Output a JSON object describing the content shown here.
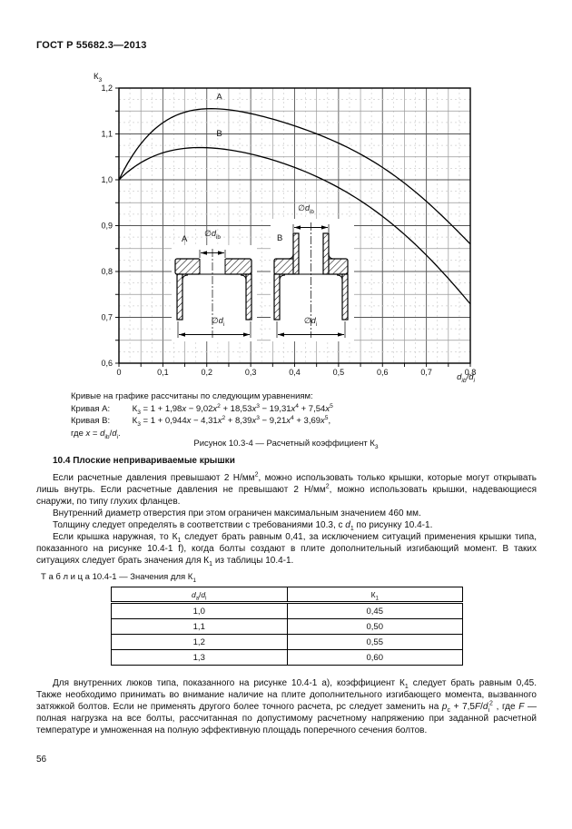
{
  "doc": {
    "header": "ГОСТ Р 55682.3—2013",
    "page_number": "56"
  },
  "chart_data": {
    "type": "line",
    "title": "",
    "ylabel": "К_{3}",
    "xlabel": "*d*_{ib}/*d*_{i}",
    "xlim": [
      0,
      0.8
    ],
    "ylim": [
      0.6,
      1.2
    ],
    "xticks": [
      "0",
      "0,1",
      "0,2",
      "0,3",
      "0,4",
      "0,5",
      "0,6",
      "0,7",
      "0,8"
    ],
    "yticks": [
      "1,2",
      "1,1",
      "1,0",
      "0,9",
      "0,8",
      "0,7",
      "0,6"
    ],
    "grid": {
      "major_step": 0.1,
      "minor_step": 0.05,
      "sub_step": 0.025,
      "grid_on": true
    },
    "legend_position": "inline-curve-labels",
    "series": [
      {
        "name": "A",
        "equation": "K3 = 1 + 1,98x − 9,02x² + 18,53x³ − 19,31x⁴ + 7,54x⁵",
        "coeffs": [
          1,
          1.98,
          -9.02,
          18.53,
          -19.31,
          7.54
        ],
        "x": [
          0,
          0.05,
          0.1,
          0.15,
          0.2,
          0.25,
          0.3,
          0.35,
          0.4,
          0.45,
          0.5,
          0.55,
          0.6,
          0.65,
          0.7,
          0.75,
          0.8
        ],
        "y": [
          1.0,
          1.0787,
          1.1245,
          1.1474,
          1.155,
          1.1527,
          1.1444,
          1.1324,
          1.1176,
          1.1004,
          1.08,
          1.0559,
          1.0271,
          0.9928,
          0.9529,
          0.9081,
          0.8599
        ],
        "label_pos": [
          0.222,
          1.175
        ]
      },
      {
        "name": "B",
        "equation": "K3 = 1 + 0,944x − 4,31x² + 8,39x³ − 9,21x⁴ + 3,69x⁵",
        "coeffs": [
          1,
          0.944,
          -4.31,
          8.39,
          -9.21,
          3.69
        ],
        "x": [
          0,
          0.05,
          0.1,
          0.15,
          0.2,
          0.25,
          0.3,
          0.35,
          0.4,
          0.45,
          0.5,
          0.55,
          0.6,
          0.65,
          0.7,
          0.75,
          0.8
        ],
        "y": [
          1.0,
          1.0374,
          1.0588,
          1.0686,
          1.07,
          1.0653,
          1.0562,
          1.0433,
          1.027,
          1.007,
          0.9829,
          0.9546,
          0.9203,
          0.8807,
          0.8355,
          0.7847,
          0.7292
        ],
        "label_pos": [
          0.222,
          1.095
        ]
      }
    ],
    "insets": {
      "a": {
        "label": "A",
        "top_dim": "∅*d*_{ib}",
        "bottom_dim": "∅*d*_{i}"
      },
      "b": {
        "label": "B",
        "top_dim": "∅*d*_{ib}",
        "bottom_dim": "∅*d*_{i}"
      }
    }
  },
  "figure": {
    "equations_intro": "Кривые на графике рассчитаны по следующим уравнениям:",
    "curve_a_label": "Кривая A:",
    "curve_a_eq": "К_{3} = 1 + 1,98*x* − 9,02*x*^{2} + 18,53*x*^{3} − 19,31*x*^{4} + 7,54*x*^{5}",
    "curve_b_label": "Кривая B:",
    "curve_b_eq": "К_{3} = 1 + 0,944*x* − 4,31*x*^{2} + 8,39*x*^{3} − 9,21*x*^{4} + 3,69*x*^{5},",
    "where_line": "где *x* = *d*_{ib}/*d*_{i}.",
    "caption": "Рисунок 10.3-4 — Расчетный коэффициент К_{3}"
  },
  "section": {
    "heading": "10.4 Плоские непривариваемые крышки",
    "paragraphs": [
      "Если расчетные давления превышают 2 Н/мм^{2}, можно использовать только крышки, которые могут открывать лишь внутрь. Если расчетные давления не превышают 2 Н/мм^{2}, можно использовать крышки, надевающиеся снаружи, по типу глухих фланцев.",
      "Внутренний диаметр отверстия при этом ограничен максимальным значением 460 мм.",
      "Толщину следует определять в соответствии с требованиями 10.3, с *d*_{1} по рисунку 10.4-1.",
      "Если крышка наружная, то К_{1} следует брать равным 0,41, за исключением ситуаций применения крышки типа, показанного на рисунке 10.4-1 f), когда болты создают в плите дополнительный изгибающий момент. В таких ситуациях следует брать значения для К_{1} из таблицы 10.4-1."
    ]
  },
  "table": {
    "caption": "Т а б л и ц а 10.4-1 — Значения для К_{1}",
    "headers": [
      "*d*_{a}/*d*_{i}",
      "К_{1}"
    ],
    "rows": [
      [
        "1,0",
        "0,45"
      ],
      [
        "1,1",
        "0,50"
      ],
      [
        "1,2",
        "0,55"
      ],
      [
        "1,3",
        "0,60"
      ]
    ]
  },
  "closing_paragraph": "Для внутренних люков типа, показанного на рисунке 10.4-1 а), коэффициент К_{1} следует брать равным 0,45. Также необходимо принимать во внимание наличие на плите дополнительного изгибающего момента, вызванного затяжкой болтов. Если не применять другого более точного расчета, рс следует заменить на *p*_{c} + 7,5*F*/*d*_{i}^{2} , где *F* — полная нагрузка на все болты, рассчитанная по допустимому расчетному напряжению при заданной расчетной температуре и умноженная на полную эффективную площадь поперечного сечения болтов."
}
